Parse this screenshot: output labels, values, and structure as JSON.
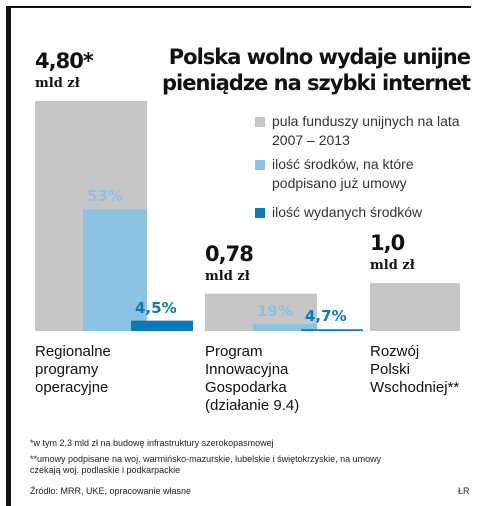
{
  "chart_data": {
    "type": "bar",
    "title": "Polska wolno wydaje unijne pieniądze na szybki internet",
    "unit": "mld zł",
    "categories": [
      "Regionalne\nprogramy\noperacyjne",
      "Program\nInnowacyjna\nGospodarka\n(działanie 9.4)",
      "Rozwój\nPolski\nWschodniej**"
    ],
    "series": [
      {
        "name": "pula funduszy unijnych na lata 2007 – 2013",
        "color": "#c6c6c6",
        "values": [
          4.8,
          0.78,
          1.0
        ],
        "value_labels": [
          "4,80*",
          "0,78",
          "1,0"
        ]
      },
      {
        "name": "ilość środków, na które podpisano już umowy",
        "color": "#8cc3e3",
        "values": [
          53,
          19,
          null
        ],
        "value_labels": [
          "53%",
          "19%",
          null
        ]
      },
      {
        "name": "ilość wydanych środków",
        "color": "#0a7bb8",
        "values": [
          4.5,
          4.7,
          null
        ],
        "value_labels": [
          "4,5%",
          "4,7%",
          null
        ]
      }
    ],
    "footnotes": [
      "*w tym 2,3 mld zł na budowę infrastruktury szerokopasmowej",
      "**umowy podpisane na woj. warmińsko-mazurskie, lubelskie i świętokrzyskie, na umowy czekają woj. podlaskie i podkarpackie"
    ],
    "source": "Źródło: MRR, UKE, opracowanie własne",
    "credit": "ŁR"
  }
}
